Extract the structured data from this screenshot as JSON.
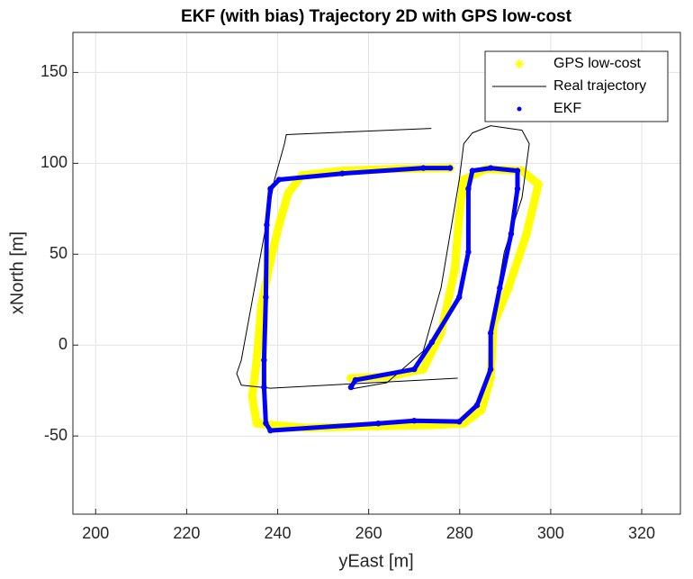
{
  "chart_data": {
    "type": "line",
    "title": "EKF (with bias) Trajectory 2D with GPS low-cost",
    "x_label": "yEast [m]",
    "y_label": "xNorth [m]",
    "xlim": [
      195,
      328.5
    ],
    "ylim": [
      -93,
      172
    ],
    "xticks": [
      200,
      220,
      240,
      260,
      280,
      300,
      320
    ],
    "yticks": [
      -50,
      0,
      50,
      100,
      150
    ],
    "grid": true,
    "legend": "northeast",
    "series": [
      {
        "name": "GPS low-cost",
        "color": "#ffff00",
        "marker": "asterisk",
        "line_width": 9,
        "x": [
          256.1,
          264.1,
          272.0,
          275.9,
          278.9,
          279.9,
          280.9,
          285.8,
          293.7,
          297.3,
          294.7,
          290.7,
          287.4,
          286.8,
          284.8,
          280.9,
          273.9,
          262.1,
          246.3,
          235.4,
          234.4,
          235.4,
          236.4,
          238.4,
          240.3,
          242.3,
          245.3,
          254.2,
          266.0,
          277.9
        ],
        "values": [
          -18.2,
          -17.2,
          -13.3,
          6.6,
          41.3,
          71.1,
          91,
          96.9,
          95.9,
          88.5,
          61.2,
          31.4,
          11.5,
          -18.2,
          -35.6,
          -43.1,
          -44,
          -44.5,
          -45.5,
          -43.1,
          -28.2,
          -8.3,
          21.5,
          46.3,
          66.1,
          83.5,
          93.4,
          95.9,
          96.9,
          97.4
        ]
      },
      {
        "name": "Real trajectory",
        "color": "#000000",
        "marker": "none",
        "line_width": 1,
        "x": [
          273.7,
          241.9,
          241.5,
          239.3,
          232.0,
          231.0,
          232.0,
          238.4,
          279.5,
          null,
          256.0,
          264.0,
          272.0,
          275.9,
          279.9,
          280.9,
          282.8,
          286.8,
          293.7,
          295.3,
          293.7,
          289.8,
          287.6
        ],
        "values": [
          119.2,
          115.8,
          110.8,
          91,
          -8.3,
          -15.7,
          -22,
          -23.7,
          -18.2,
          null,
          -24.2,
          -20.7,
          -3.3,
          31.4,
          91,
          110.8,
          116.7,
          120.7,
          118.2,
          110.8,
          81,
          51.2,
          19
        ]
      },
      {
        "name": "EKF",
        "color": "#0000ff",
        "marker": "dot",
        "line_width": 5,
        "x": [
          256.1,
          257.1,
          270.0,
          273.9,
          279.9,
          281.9,
          281.9,
          282.8,
          286.8,
          292.7,
          292.7,
          291.3,
          288.8,
          286.8,
          286.8,
          283.8,
          279.9,
          270.0,
          262.1,
          238.4,
          237.4,
          237.0,
          237.0,
          237.4,
          237.6,
          238.4,
          240.3,
          254.2,
          272.0,
          277.9
        ],
        "values": [
          -23.2,
          -19.2,
          -13.3,
          1.6,
          26.4,
          51.2,
          86,
          95.9,
          97.4,
          95.9,
          86,
          61.2,
          31.4,
          6.6,
          -13.3,
          -33.1,
          -42.1,
          -41.6,
          -43.1,
          -47,
          -43,
          -23.2,
          -8.3,
          26.4,
          66.1,
          86,
          91,
          94.4,
          97.4,
          97.4
        ]
      }
    ]
  }
}
